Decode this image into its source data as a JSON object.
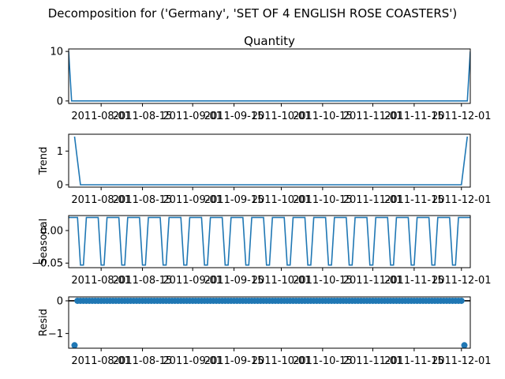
{
  "chart_data": {
    "suptitle": "Decomposition for ('Germany', 'SET OF 4 ENGLISH ROSE COASTERS')",
    "type": "line",
    "x_start": "2011-07-21",
    "x_end": "2011-12-04",
    "x_ticks": [
      "2011-08-01",
      "2011-08-15",
      "2011-09-01",
      "2011-09-15",
      "2011-10-01",
      "2011-10-15",
      "2011-11-01",
      "2011-11-15",
      "2011-12-01"
    ],
    "color": "#1f77b4",
    "panels": [
      {
        "id": "observed",
        "title": "Quantity",
        "ylabel": "",
        "kind": "line",
        "ylim": [
          -0.5,
          10.5
        ],
        "yticks": [
          0,
          10
        ],
        "ytick_labels": [
          "0",
          "10"
        ],
        "points": [
          [
            "2011-07-21",
            10
          ],
          [
            "2011-07-22",
            0
          ],
          [
            "2011-12-03",
            0
          ],
          [
            "2011-12-04",
            10
          ]
        ]
      },
      {
        "id": "trend",
        "title": "",
        "ylabel": "Trend",
        "kind": "line",
        "ylim": [
          -0.07,
          1.5
        ],
        "yticks": [
          0,
          1
        ],
        "ytick_labels": [
          "0",
          "1"
        ],
        "points": [
          [
            "2011-07-23",
            1.43
          ],
          [
            "2011-07-25",
            0
          ],
          [
            "2011-12-01",
            0
          ],
          [
            "2011-12-03",
            1.43
          ]
        ]
      },
      {
        "id": "seasonal",
        "title": "",
        "ylabel": "Seasonal",
        "kind": "line",
        "ylim": [
          -0.057,
          0.023
        ],
        "yticks": [
          0,
          -0.05
        ],
        "ytick_labels": [
          "0.00",
          "−0.05"
        ],
        "period_days": 7,
        "pattern": [
          0.02,
          0.02,
          0.02,
          0.02,
          -0.053,
          -0.053,
          0.02
        ],
        "pattern_start": "2011-07-21"
      },
      {
        "id": "resid",
        "title": "",
        "ylabel": "Resid",
        "kind": "scatter",
        "ylim": [
          -1.45,
          0.12
        ],
        "yticks": [
          0,
          -1
        ],
        "ytick_labels": [
          "0",
          "−1"
        ],
        "zero_line": true,
        "resid_start": "2011-07-24",
        "resid_end": "2011-12-01",
        "resid_default": 0,
        "outliers": [
          [
            "2011-07-23",
            -1.36
          ],
          [
            "2011-12-02",
            -1.36
          ]
        ]
      }
    ]
  }
}
